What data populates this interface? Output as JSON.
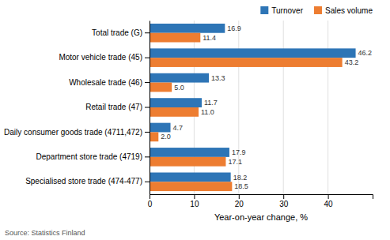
{
  "chart_data": {
    "type": "bar",
    "orientation": "horizontal",
    "categories": [
      "Total trade (G)",
      "Motor vehicle trade (45)",
      "Wholesale trade (46)",
      "Retail trade (47)",
      "Daily consumer goods trade (4711,472)",
      "Department store trade (4719)",
      "Specialised store trade (474-477)"
    ],
    "series": [
      {
        "name": "Turnover",
        "color": "#2e75b6",
        "values": [
          16.9,
          46.2,
          13.3,
          11.7,
          4.7,
          17.9,
          18.2
        ]
      },
      {
        "name": "Sales volume",
        "color": "#ed7d31",
        "values": [
          11.4,
          43.2,
          5.0,
          11.0,
          2.0,
          17.1,
          18.5
        ],
        "value_labels": [
          "11.4",
          "43.2",
          "5.0",
          "11.0",
          "2.0",
          "17.1",
          "18.5"
        ]
      }
    ],
    "xlabel": "Year-on-year change, %",
    "xlim": [
      0,
      50
    ],
    "xticks": [
      0,
      10,
      20,
      30,
      40
    ],
    "grid": true,
    "legend": "upper right",
    "data_labels": true,
    "annotations": [
      "Source: Statistics Finland"
    ]
  }
}
